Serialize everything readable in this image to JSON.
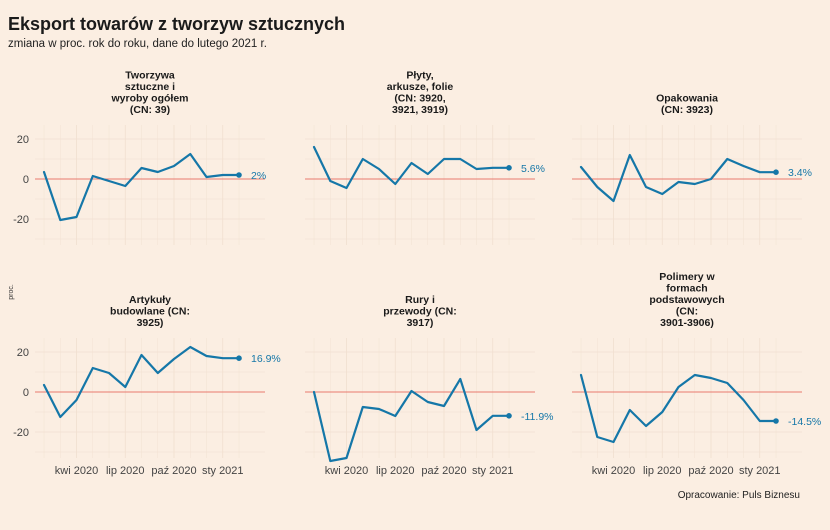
{
  "title": "Eksport towarów z tworzyw sztucznych",
  "subtitle": "zmiana w proc. rok do roku, dane do lutego 2021 r.",
  "caption": "Opracowanie: Puls Biznesu",
  "colors": {
    "line": "#1577a8",
    "zero": "#e87a6f",
    "grid": "#f1dfd0",
    "background": "#fbeee2"
  },
  "chart_data": {
    "type": "line",
    "facet": "small-multiples",
    "ylabel": "proc.",
    "ylim": [
      -33,
      27
    ],
    "y_ticks": [
      "20",
      "0",
      "-20"
    ],
    "y_tick_values": [
      20,
      0,
      -20
    ],
    "x_ticks": [
      "kwi 2020",
      "lip 2020",
      "paź 2020",
      "sty 2021"
    ],
    "x_tick_index": [
      2,
      5,
      8,
      11
    ],
    "months": [
      "2020-02",
      "2020-03",
      "2020-04",
      "2020-05",
      "2020-06",
      "2020-07",
      "2020-08",
      "2020-09",
      "2020-10",
      "2020-11",
      "2020-12",
      "2021-01",
      "2021-02"
    ],
    "grid": true,
    "panels": [
      {
        "title_lines": [
          "Tworzywa",
          "sztuczne i",
          "wyroby ogółem",
          "(CN: 39)"
        ],
        "values": [
          3.5,
          -20.5,
          -19,
          1.5,
          -1,
          -3.5,
          5.5,
          3.5,
          6.5,
          12.5,
          1,
          2,
          2
        ],
        "end_label": "2%"
      },
      {
        "title_lines": [
          "Płyty,",
          "arkusze, folie",
          "(CN: 3920,",
          "3921, 3919)"
        ],
        "values": [
          16,
          -1,
          -4.5,
          10,
          5,
          -2.5,
          8,
          2.5,
          10,
          10,
          5,
          5.6,
          5.6
        ],
        "end_label": "5.6%"
      },
      {
        "title_lines": [
          "Opakowania",
          "(CN: 3923)"
        ],
        "values": [
          6,
          -4,
          -11,
          12,
          -4,
          -7.5,
          -1.5,
          -2.5,
          0,
          10,
          6.5,
          3.4,
          3.4
        ],
        "end_label": "3.4%"
      },
      {
        "title_lines": [
          "Artykuły",
          "budowlane (CN:",
          "3925)"
        ],
        "values": [
          3.5,
          -12.5,
          -4,
          12,
          9.5,
          2.5,
          18.5,
          9.5,
          16.5,
          22.5,
          18,
          16.9,
          16.9
        ],
        "end_label": "16.9%"
      },
      {
        "title_lines": [
          "Rury i",
          "przewody (CN:",
          "3917)"
        ],
        "values": [
          0,
          -34.5,
          -33,
          -7.5,
          -8.5,
          -12,
          0.5,
          -5,
          -7,
          6.5,
          -19,
          -11.9,
          -11.9
        ],
        "end_label": "-11.9%"
      },
      {
        "title_lines": [
          "Polimery w",
          "formach",
          "podstawowych",
          "(CN:",
          "3901-3906)"
        ],
        "values": [
          8.5,
          -22.5,
          -25,
          -9,
          -17,
          -10,
          2.5,
          8.5,
          7,
          4.5,
          -4,
          -14.5,
          -14.5
        ],
        "end_label": "-14.5%"
      }
    ]
  }
}
